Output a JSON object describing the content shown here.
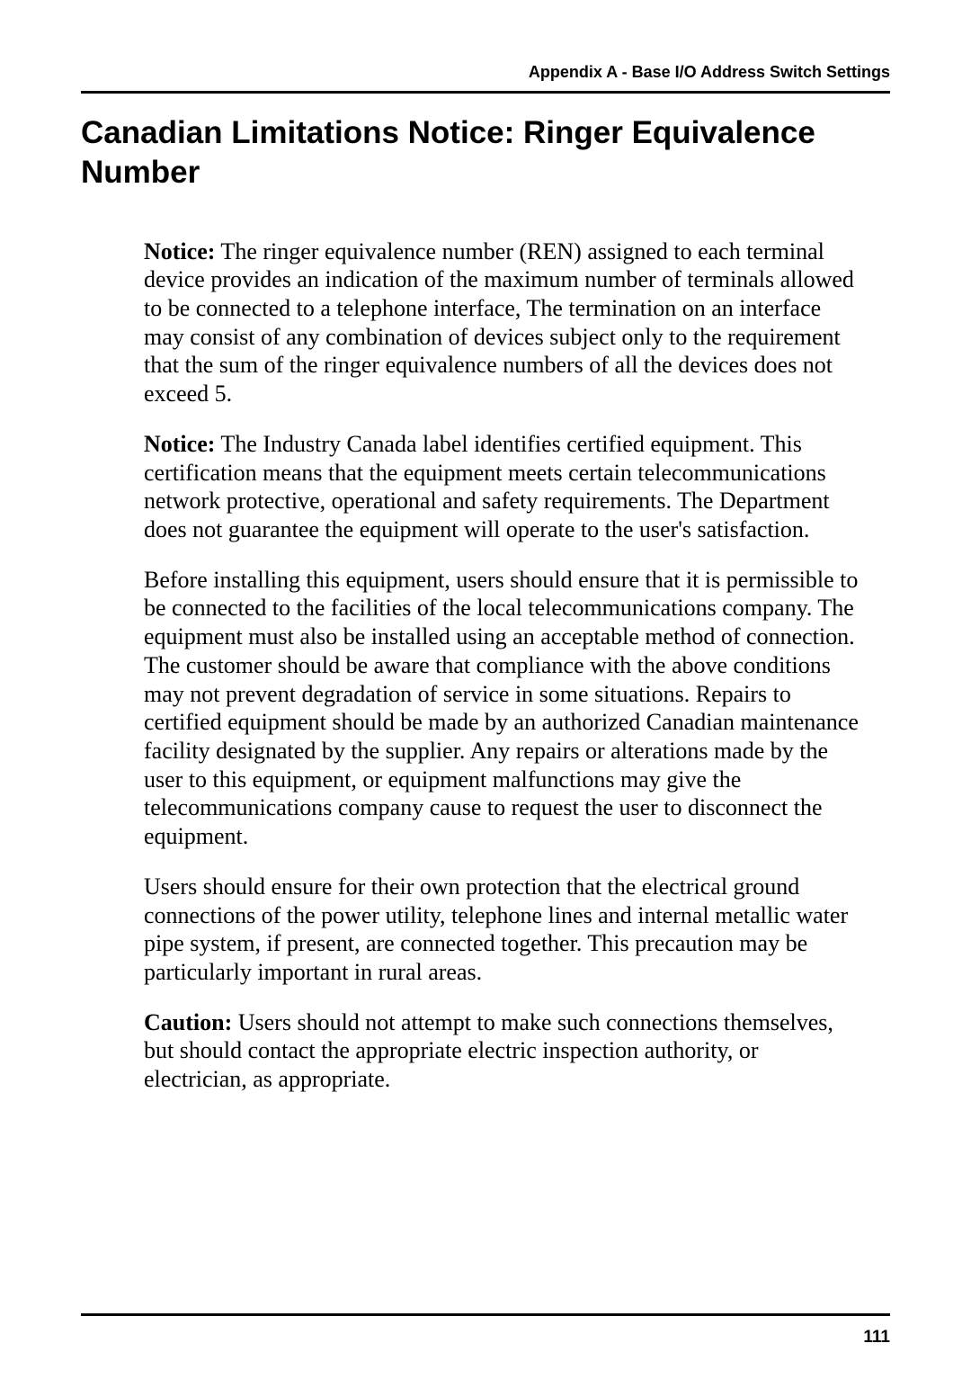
{
  "header": {
    "text": "Appendix A - Base I/O Address Switch Settings"
  },
  "title": "Canadian Limitations Notice: Ringer Equivalence Number",
  "paragraphs": [
    {
      "lead": "Notice:",
      "body": "  The ringer equivalence number (REN) assigned to each terminal device provides an indication of the maximum number of terminals allowed to be connected to a telephone interface, The termination on an interface may consist of any combination of devices subject only to the requirement that the sum of the ringer equivalence numbers of all the devices does not exceed 5."
    },
    {
      "lead": "Notice:",
      "body": " The Industry Canada label identifies certified equipment.  This certification means that the equipment meets certain telecommunications network protective, operational and safety requirements.  The Department does not guarantee the equipment will operate to the user's satisfaction."
    },
    {
      "lead": "",
      "body": "Before installing this equipment, users should ensure that it is permissible to be connected to the facilities of the local telecommunications company.  The equipment must also be installed using an acceptable method of connection.  The customer should be aware that compliance with the above conditions may not prevent degradation of service in some situations.  Repairs to certified equipment should be made by an authorized Canadian maintenance facility designated by the supplier.  Any repairs or alterations made by the user to this equipment, or equipment malfunctions may give the telecommunications company cause to request the user to disconnect the equipment."
    },
    {
      "lead": "",
      "body": "Users should ensure for their own protection that the electrical ground connections of the power utility, telephone lines and internal metallic water pipe system, if present, are connected together.  This precaution may be particularly important in rural areas."
    },
    {
      "lead": "Caution:",
      "body": "  Users should not attempt to make such connections themselves, but should contact the appropriate electric inspection authority, or electrician, as appropriate."
    }
  ],
  "page_number": "111",
  "colors": {
    "text": "#000000",
    "background": "#ffffff",
    "rule": "#000000"
  },
  "typography": {
    "header_font": "Arial",
    "header_size_pt": 13,
    "title_font": "Arial",
    "title_size_pt": 26,
    "body_font": "Times New Roman",
    "body_size_pt": 19,
    "pagenum_font": "Arial",
    "pagenum_size_pt": 14
  }
}
